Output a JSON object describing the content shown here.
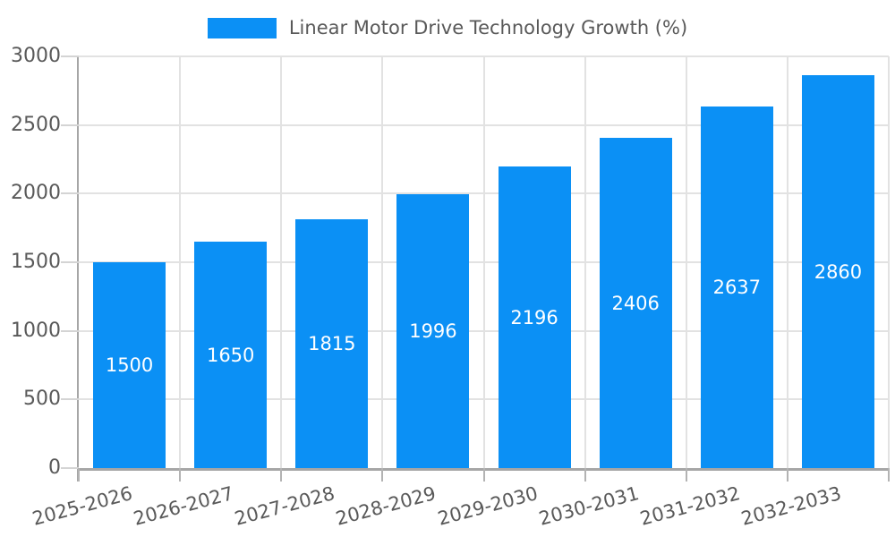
{
  "chart_data": {
    "type": "bar",
    "title": "",
    "legend": {
      "label": "Linear Motor Drive Technology Growth (%)",
      "position": "top-center"
    },
    "categories": [
      "2025-2026",
      "2026-2027",
      "2027-2028",
      "2028-2029",
      "2029-2030",
      "2030-2031",
      "2031-2032",
      "2032-2033"
    ],
    "values": [
      1500,
      1650,
      1815,
      1996,
      2196,
      2406,
      2637,
      2860
    ],
    "xlabel": "",
    "ylabel": "",
    "ylim": [
      0,
      3000
    ],
    "yticks": [
      0,
      500,
      1000,
      1500,
      2000,
      2500,
      3000
    ],
    "grid": true,
    "x_tick_rotation_deg": -15,
    "value_labels": {
      "position": "inside-middle",
      "color": "#ffffff"
    },
    "colors": {
      "bar": "#0b90f5",
      "grid": "#e2e2e2",
      "axis": "#a6a6a6",
      "x_tick": "#b3b3b3",
      "y_tick": "#d4d4d4",
      "tick_label": "#595959",
      "legend_text": "#595959",
      "background": "#ffffff"
    }
  }
}
